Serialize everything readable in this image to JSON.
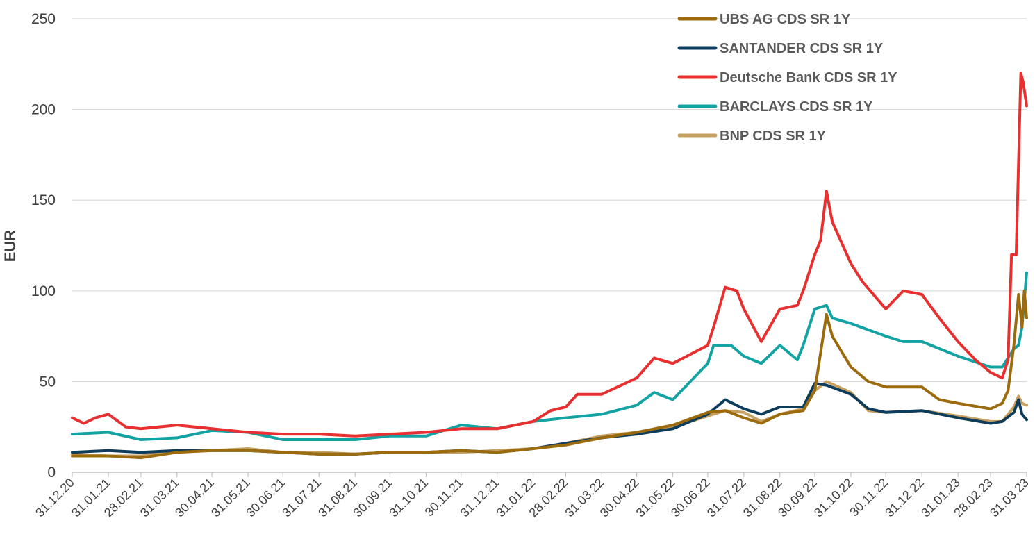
{
  "chart_data": {
    "type": "line",
    "title": "",
    "xlabel": "",
    "ylabel": "EUR",
    "ylim": [
      0,
      250
    ],
    "yticks": [
      0,
      50,
      100,
      150,
      200,
      250
    ],
    "x_ticks": [
      "31.12.20",
      "31.01.21",
      "28.02.21",
      "31.03.21",
      "30.04.21",
      "31.05.21",
      "30.06.21",
      "31.07.21",
      "31.08.21",
      "30.09.21",
      "31.10.21",
      "30.11.21",
      "31.12.21",
      "31.01.22",
      "28.02.22",
      "31.03.22",
      "30.04.22",
      "31.05.22",
      "30.06.22",
      "31.07.22",
      "31.08.22",
      "30.09.22",
      "31.10.22",
      "30.11.22",
      "31.12.22",
      "31.01.23",
      "28.02.23",
      "31.03.23"
    ],
    "grid": "horizontal",
    "legend_position": "top-right",
    "series": [
      {
        "name": "UBS AG CDS SR 1Y",
        "color": "#9c6b0e",
        "points": [
          [
            "31.12.20",
            9
          ],
          [
            "31.01.21",
            9
          ],
          [
            "28.02.21",
            8
          ],
          [
            "31.03.21",
            11
          ],
          [
            "30.04.21",
            12
          ],
          [
            "31.05.21",
            12
          ],
          [
            "30.06.21",
            11
          ],
          [
            "31.07.21",
            10
          ],
          [
            "31.08.21",
            10
          ],
          [
            "30.09.21",
            11
          ],
          [
            "31.10.21",
            11
          ],
          [
            "30.11.21",
            12
          ],
          [
            "31.12.21",
            11
          ],
          [
            "31.01.22",
            13
          ],
          [
            "28.02.22",
            15
          ],
          [
            "31.03.22",
            19
          ],
          [
            "30.04.22",
            22
          ],
          [
            "31.05.22",
            26
          ],
          [
            "30.06.22",
            33
          ],
          [
            "15.07.22",
            34
          ],
          [
            "31.07.22",
            30
          ],
          [
            "15.08.22",
            27
          ],
          [
            "31.08.22",
            32
          ],
          [
            "20.09.22",
            34
          ],
          [
            "30.09.22",
            45
          ],
          [
            "10.10.22",
            87
          ],
          [
            "15.10.22",
            75
          ],
          [
            "31.10.22",
            58
          ],
          [
            "15.11.22",
            50
          ],
          [
            "30.11.22",
            47
          ],
          [
            "31.12.22",
            47
          ],
          [
            "15.01.23",
            40
          ],
          [
            "31.01.23",
            38
          ],
          [
            "28.02.23",
            35
          ],
          [
            "10.03.23",
            38
          ],
          [
            "15.03.23",
            45
          ],
          [
            "20.03.23",
            70
          ],
          [
            "24.03.23",
            98
          ],
          [
            "27.03.23",
            80
          ],
          [
            "29.03.23",
            100
          ],
          [
            "31.03.23",
            85
          ]
        ]
      },
      {
        "name": "SANTANDER CDS SR 1Y",
        "color": "#0e3d5c",
        "points": [
          [
            "31.12.20",
            11
          ],
          [
            "31.01.21",
            12
          ],
          [
            "28.02.21",
            11
          ],
          [
            "31.03.21",
            12
          ],
          [
            "30.04.21",
            12
          ],
          [
            "31.05.21",
            12
          ],
          [
            "30.06.21",
            11
          ],
          [
            "31.07.21",
            10
          ],
          [
            "31.08.21",
            10
          ],
          [
            "30.09.21",
            11
          ],
          [
            "31.10.21",
            11
          ],
          [
            "30.11.21",
            12
          ],
          [
            "31.12.21",
            11
          ],
          [
            "31.01.22",
            13
          ],
          [
            "28.02.22",
            16
          ],
          [
            "31.03.22",
            19
          ],
          [
            "30.04.22",
            21
          ],
          [
            "31.05.22",
            24
          ],
          [
            "30.06.22",
            32
          ],
          [
            "15.07.22",
            40
          ],
          [
            "31.07.22",
            35
          ],
          [
            "15.08.22",
            32
          ],
          [
            "31.08.22",
            36
          ],
          [
            "20.09.22",
            36
          ],
          [
            "30.09.22",
            49
          ],
          [
            "10.10.22",
            48
          ],
          [
            "31.10.22",
            43
          ],
          [
            "15.11.22",
            35
          ],
          [
            "30.11.22",
            33
          ],
          [
            "31.12.22",
            34
          ],
          [
            "31.01.23",
            30
          ],
          [
            "28.02.23",
            27
          ],
          [
            "10.03.23",
            28
          ],
          [
            "20.03.23",
            33
          ],
          [
            "24.03.23",
            40
          ],
          [
            "27.03.23",
            32
          ],
          [
            "31.03.23",
            29
          ]
        ]
      },
      {
        "name": "Deutsche Bank CDS SR 1Y",
        "color": "#e83030",
        "points": [
          [
            "31.12.20",
            30
          ],
          [
            "10.01.21",
            27
          ],
          [
            "20.01.21",
            30
          ],
          [
            "31.01.21",
            32
          ],
          [
            "15.02.21",
            25
          ],
          [
            "28.02.21",
            24
          ],
          [
            "31.03.21",
            26
          ],
          [
            "30.04.21",
            24
          ],
          [
            "31.05.21",
            22
          ],
          [
            "30.06.21",
            21
          ],
          [
            "31.07.21",
            21
          ],
          [
            "31.08.21",
            20
          ],
          [
            "30.09.21",
            21
          ],
          [
            "31.10.21",
            22
          ],
          [
            "30.11.21",
            24
          ],
          [
            "31.12.21",
            24
          ],
          [
            "31.01.22",
            28
          ],
          [
            "15.02.22",
            34
          ],
          [
            "28.02.22",
            36
          ],
          [
            "10.03.22",
            43
          ],
          [
            "31.03.22",
            43
          ],
          [
            "30.04.22",
            52
          ],
          [
            "15.05.22",
            63
          ],
          [
            "31.05.22",
            60
          ],
          [
            "30.06.22",
            70
          ],
          [
            "05.07.22",
            80
          ],
          [
            "15.07.22",
            102
          ],
          [
            "25.07.22",
            100
          ],
          [
            "31.07.22",
            90
          ],
          [
            "15.08.22",
            72
          ],
          [
            "31.08.22",
            90
          ],
          [
            "15.09.22",
            92
          ],
          [
            "20.09.22",
            100
          ],
          [
            "30.09.22",
            120
          ],
          [
            "05.10.22",
            128
          ],
          [
            "10.10.22",
            155
          ],
          [
            "15.10.22",
            138
          ],
          [
            "31.10.22",
            115
          ],
          [
            "10.11.22",
            105
          ],
          [
            "30.11.22",
            90
          ],
          [
            "15.12.22",
            100
          ],
          [
            "31.12.22",
            98
          ],
          [
            "15.01.23",
            85
          ],
          [
            "31.01.23",
            72
          ],
          [
            "15.02.23",
            62
          ],
          [
            "28.02.23",
            55
          ],
          [
            "10.03.23",
            52
          ],
          [
            "15.03.23",
            62
          ],
          [
            "18.03.23",
            120
          ],
          [
            "22.03.23",
            120
          ],
          [
            "24.03.23",
            170
          ],
          [
            "26.03.23",
            220
          ],
          [
            "28.03.23",
            215
          ],
          [
            "31.03.23",
            202
          ]
        ]
      },
      {
        "name": "BARCLAYS CDS SR 1Y",
        "color": "#14a3a3",
        "points": [
          [
            "31.12.20",
            21
          ],
          [
            "31.01.21",
            22
          ],
          [
            "28.02.21",
            18
          ],
          [
            "31.03.21",
            19
          ],
          [
            "30.04.21",
            23
          ],
          [
            "31.05.21",
            22
          ],
          [
            "30.06.21",
            18
          ],
          [
            "31.07.21",
            18
          ],
          [
            "31.08.21",
            18
          ],
          [
            "30.09.21",
            20
          ],
          [
            "31.10.21",
            20
          ],
          [
            "30.11.21",
            26
          ],
          [
            "31.12.21",
            24
          ],
          [
            "31.01.22",
            28
          ],
          [
            "28.02.22",
            30
          ],
          [
            "31.03.22",
            32
          ],
          [
            "30.04.22",
            37
          ],
          [
            "15.05.22",
            44
          ],
          [
            "31.05.22",
            40
          ],
          [
            "30.06.22",
            60
          ],
          [
            "05.07.22",
            70
          ],
          [
            "20.07.22",
            70
          ],
          [
            "31.07.22",
            64
          ],
          [
            "15.08.22",
            60
          ],
          [
            "31.08.22",
            70
          ],
          [
            "15.09.22",
            62
          ],
          [
            "20.09.22",
            70
          ],
          [
            "30.09.22",
            90
          ],
          [
            "10.10.22",
            92
          ],
          [
            "15.10.22",
            85
          ],
          [
            "31.10.22",
            82
          ],
          [
            "30.11.22",
            75
          ],
          [
            "15.12.22",
            72
          ],
          [
            "31.12.22",
            72
          ],
          [
            "31.01.23",
            64
          ],
          [
            "28.02.23",
            58
          ],
          [
            "10.03.23",
            58
          ],
          [
            "20.03.23",
            68
          ],
          [
            "24.03.23",
            70
          ],
          [
            "27.03.23",
            80
          ],
          [
            "31.03.23",
            110
          ]
        ]
      },
      {
        "name": "BNP CDS SR 1Y",
        "color": "#c6a060",
        "points": [
          [
            "31.12.20",
            10
          ],
          [
            "31.01.21",
            9
          ],
          [
            "28.02.21",
            9
          ],
          [
            "31.03.21",
            12
          ],
          [
            "30.04.21",
            12
          ],
          [
            "31.05.21",
            13
          ],
          [
            "30.06.21",
            11
          ],
          [
            "31.07.21",
            11
          ],
          [
            "31.08.21",
            10
          ],
          [
            "30.09.21",
            11
          ],
          [
            "31.10.21",
            11
          ],
          [
            "30.11.21",
            11
          ],
          [
            "31.12.21",
            12
          ],
          [
            "31.01.22",
            13
          ],
          [
            "28.02.22",
            16
          ],
          [
            "31.03.22",
            20
          ],
          [
            "30.04.22",
            22
          ],
          [
            "31.05.22",
            25
          ],
          [
            "30.06.22",
            31
          ],
          [
            "15.07.22",
            34
          ],
          [
            "31.07.22",
            33
          ],
          [
            "15.08.22",
            28
          ],
          [
            "31.08.22",
            32
          ],
          [
            "20.09.22",
            35
          ],
          [
            "30.09.22",
            45
          ],
          [
            "10.10.22",
            50
          ],
          [
            "31.10.22",
            44
          ],
          [
            "15.11.22",
            34
          ],
          [
            "30.11.22",
            33
          ],
          [
            "31.12.22",
            34
          ],
          [
            "31.01.23",
            31
          ],
          [
            "28.02.23",
            28
          ],
          [
            "10.03.23",
            28
          ],
          [
            "20.03.23",
            36
          ],
          [
            "24.03.23",
            42
          ],
          [
            "27.03.23",
            38
          ],
          [
            "31.03.23",
            37
          ]
        ]
      }
    ]
  }
}
